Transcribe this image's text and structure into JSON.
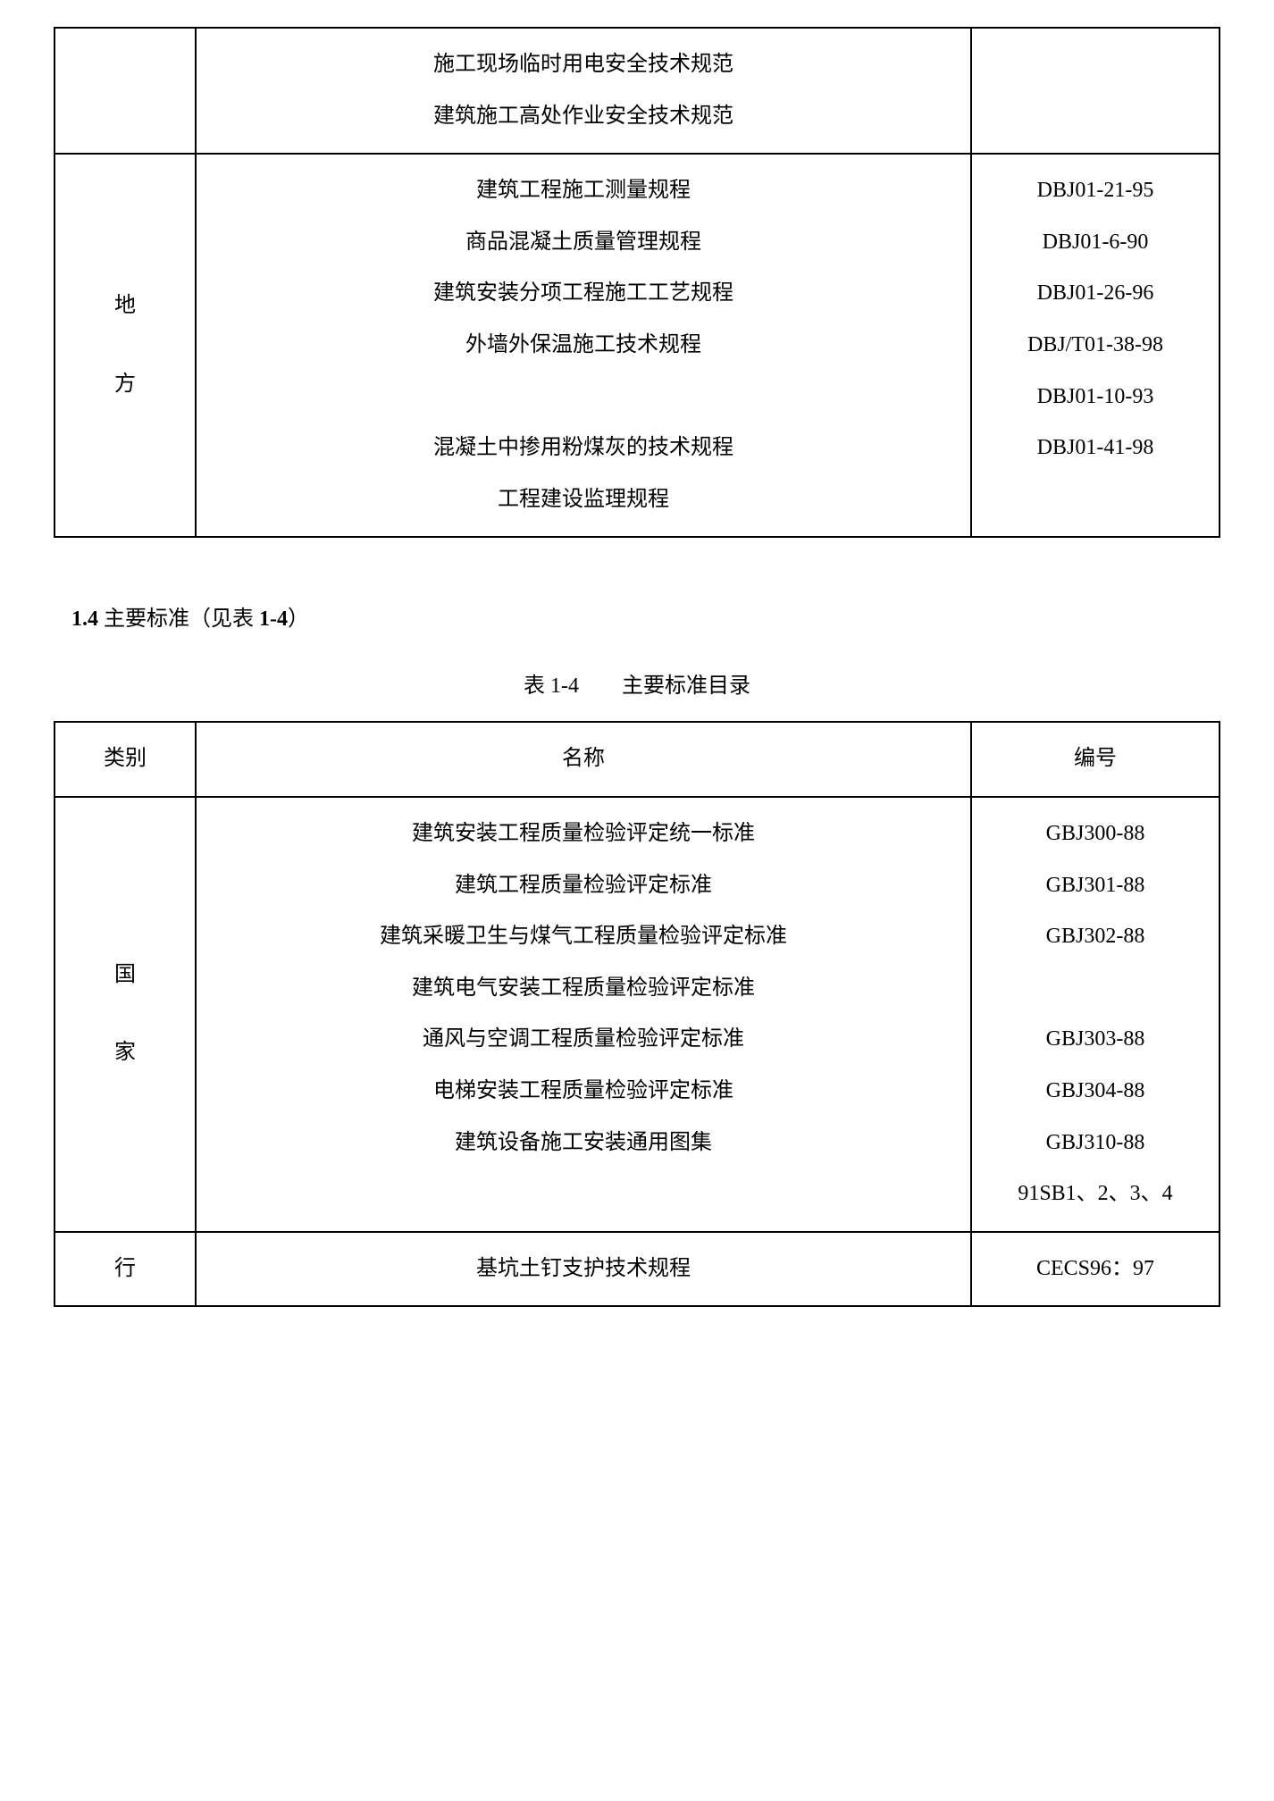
{
  "table1": {
    "row1": {
      "names": [
        "施工现场临时用电安全技术规范",
        "建筑施工高处作业安全技术规范"
      ]
    },
    "row2": {
      "catChar1": "地",
      "catChar2": "方",
      "names": [
        "建筑工程施工测量规程",
        "商品混凝土质量管理规程",
        "建筑安装分项工程施工工艺规程",
        "外墙外保温施工技术规程",
        "混凝土中掺用粉煤灰的技术规程",
        "工程建设监理规程"
      ],
      "codes": [
        "DBJ01-21-95",
        "DBJ01-6-90",
        "DBJ01-26-96",
        "DBJ/T01-38-98",
        "DBJ01-10-93",
        "DBJ01-41-98"
      ]
    }
  },
  "section": {
    "numLabel": "1.4",
    "titlePart1": " 主要标准（见表 ",
    "numRef": "1-4",
    "titlePart2": "）"
  },
  "caption": "表 1-4　　主要标准目录",
  "table2": {
    "headers": {
      "cat": "类别",
      "name": "名称",
      "code": "编号"
    },
    "row1": {
      "catChar1": "国",
      "catChar2": "家",
      "names": [
        "建筑安装工程质量检验评定统一标准",
        "建筑工程质量检验评定标准",
        "建筑采暖卫生与煤气工程质量检验评定标准",
        "建筑电气安装工程质量检验评定标准",
        "通风与空调工程质量检验评定标准",
        "电梯安装工程质量检验评定标准",
        "建筑设备施工安装通用图集"
      ],
      "codes": [
        "GBJ300-88",
        "GBJ301-88",
        "GBJ302-88",
        "GBJ303-88",
        "GBJ304-88",
        "GBJ310-88",
        "91SB1、2、3、4"
      ]
    },
    "row2": {
      "cat": "行",
      "names": [
        "基坑土钉支护技术规程"
      ],
      "codes": [
        "CECS96：97"
      ]
    }
  }
}
